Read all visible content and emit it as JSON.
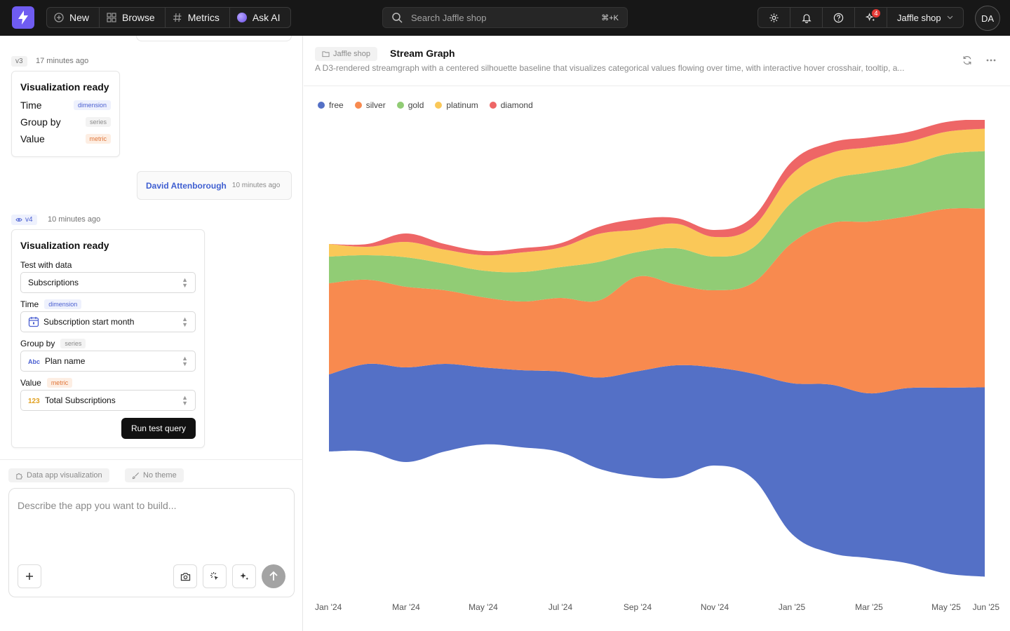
{
  "topbar": {
    "nav": [
      {
        "label": "New",
        "icon": "plus-circle-icon"
      },
      {
        "label": "Browse",
        "icon": "grid-icon"
      },
      {
        "label": "Metrics",
        "icon": "hash-icon"
      },
      {
        "label": "Ask AI",
        "icon": "ai-orb-icon"
      }
    ],
    "search_placeholder": "Search Jaffle shop",
    "search_shortcut": "⌘+K",
    "notification_count": "4",
    "org_name": "Jaffle shop",
    "avatar_initials": "DA"
  },
  "conversation": {
    "v3": {
      "version": "v3",
      "time": "17 minutes ago",
      "card_title": "Visualization ready",
      "rows": [
        {
          "label": "Time",
          "tag": "dimension"
        },
        {
          "label": "Group by",
          "tag": "series"
        },
        {
          "label": "Value",
          "tag": "metric"
        }
      ]
    },
    "message": {
      "author": "David Attenborough",
      "time": "10 minutes ago"
    },
    "v4": {
      "version": "v4",
      "time": "10 minutes ago",
      "card_title": "Visualization ready",
      "test_label": "Test with data",
      "test_value": "Subscriptions",
      "time_label": "Time",
      "time_tag": "dimension",
      "time_value": "Subscription start month",
      "group_label": "Group by",
      "group_tag": "series",
      "group_value": "Plan name",
      "value_label": "Value",
      "value_tag": "metric",
      "value_value": "Total Subscriptions",
      "run_label": "Run test query"
    }
  },
  "composer": {
    "chips": [
      "Data app visualization",
      "No theme"
    ],
    "placeholder": "Describe the app you want to build..."
  },
  "viz": {
    "folder": "Jaffle shop",
    "title": "Stream Graph",
    "description": "A D3-rendered streamgraph with a centered silhouette baseline that visualizes categorical values flowing over time, with interactive hover crosshair, tooltip, a..."
  },
  "colors": {
    "free": "#5470c6",
    "silver": "#f88a4f",
    "gold": "#91cc75",
    "platinum": "#fac858",
    "diamond": "#ee6666"
  },
  "chart_data": {
    "type": "area",
    "baseline": "silhouette",
    "legend_position": "top-left",
    "x": [
      "Jan '24",
      "Feb '24",
      "Mar '24",
      "Apr '24",
      "May '24",
      "Jun '24",
      "Jul '24",
      "Aug '24",
      "Sep '24",
      "Oct '24",
      "Nov '24",
      "Dec '24",
      "Jan '25",
      "Feb '25",
      "Mar '25",
      "Apr '25",
      "May '25",
      "Jun '25"
    ],
    "x_ticks": [
      "Jan '24",
      "Mar '24",
      "May '24",
      "Jul '24",
      "Sep '24",
      "Nov '24",
      "Jan '25",
      "Mar '25",
      "May '25",
      "Jun '25"
    ],
    "series": [
      {
        "name": "free",
        "values": [
          110,
          125,
          135,
          125,
          110,
          110,
          115,
          130,
          150,
          160,
          140,
          150,
          215,
          240,
          235,
          250,
          265,
          270
        ]
      },
      {
        "name": "silver",
        "values": [
          130,
          120,
          115,
          105,
          100,
          98,
          105,
          110,
          135,
          115,
          110,
          130,
          200,
          230,
          245,
          245,
          255,
          255
        ]
      },
      {
        "name": "gold",
        "values": [
          38,
          35,
          42,
          38,
          38,
          42,
          44,
          55,
          35,
          52,
          48,
          50,
          58,
          62,
          70,
          72,
          78,
          82
        ]
      },
      {
        "name": "platinum",
        "values": [
          18,
          12,
          22,
          20,
          22,
          28,
          28,
          40,
          32,
          35,
          28,
          30,
          40,
          38,
          36,
          34,
          32,
          32
        ]
      },
      {
        "name": "diamond",
        "values": [
          0,
          4,
          12,
          8,
          6,
          6,
          6,
          10,
          15,
          8,
          10,
          14,
          18,
          15,
          14,
          14,
          14,
          14
        ]
      }
    ]
  }
}
